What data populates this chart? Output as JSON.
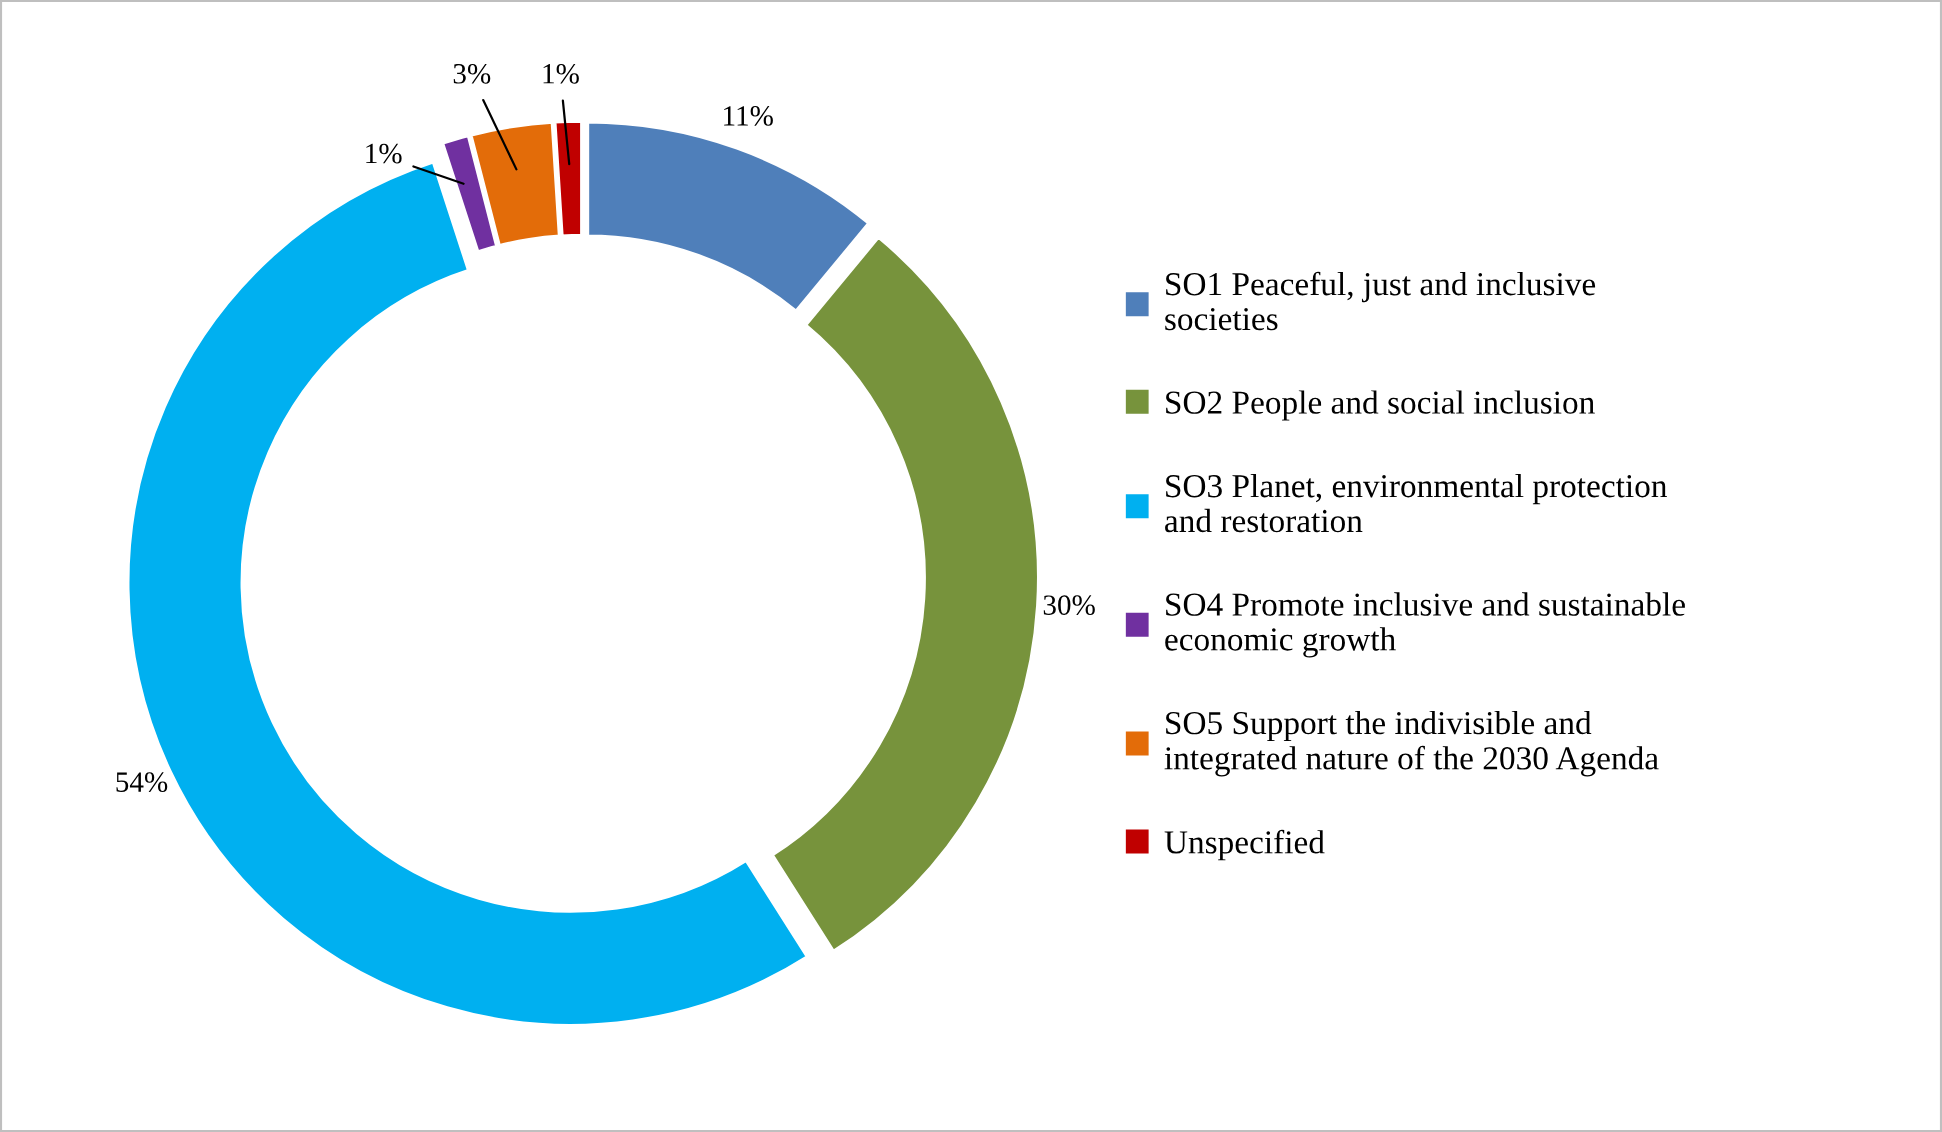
{
  "chart_data": {
    "type": "donut",
    "categories": [
      "SO1 Peaceful, just and inclusive societies",
      "SO2 People and social inclusion",
      "SO3 Planet, environmental protection and restoration",
      "SO4 Promote inclusive and sustainable economic growth",
      "SO5 Support the indivisible and integrated nature of the 2030 Agenda",
      "Unspecified"
    ],
    "values": [
      11,
      30,
      54,
      1,
      3,
      1
    ],
    "colors": [
      "#4f7fba",
      "#77933c",
      "#00b0f0",
      "#7030a0",
      "#e36c09",
      "#c00000"
    ],
    "value_labels": [
      "11%",
      "30%",
      "54%",
      "1%",
      "3%",
      "1%"
    ],
    "legend": "right"
  }
}
